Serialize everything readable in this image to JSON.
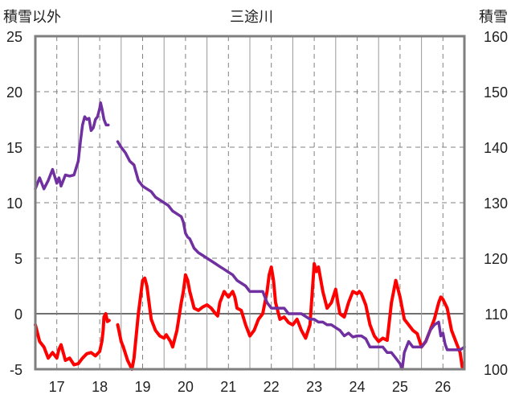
{
  "chart_data": {
    "type": "line",
    "title": "三途川",
    "y_left_label": "積雪以外",
    "y_right_label": "積雪",
    "x_categories": [
      "17",
      "18",
      "19",
      "20",
      "21",
      "22",
      "23",
      "24",
      "25",
      "26"
    ],
    "xlim": [
      16.5,
      26.5
    ],
    "y_left_lim": [
      -5,
      25
    ],
    "y_left_ticks": [
      "25",
      "20",
      "15",
      "10",
      "5",
      "0",
      "-5"
    ],
    "y_right_lim": [
      100,
      160
    ],
    "y_right_ticks": [
      "160",
      "150",
      "140",
      "130",
      "120",
      "110",
      "100"
    ],
    "grid": "dashed vertical and horizontal gridlines",
    "colors": {
      "red_series": "#ff0000",
      "purple_series": "#7030a0",
      "frame": "#7f7f7f",
      "grid": "#808080"
    },
    "series": [
      {
        "axis": "left",
        "color": "#ff0000",
        "segments": [
          [
            [
              16.5,
              -1.0
            ],
            [
              16.6,
              -2.5
            ],
            [
              16.7,
              -3.0
            ],
            [
              16.8,
              -4.0
            ],
            [
              16.9,
              -3.5
            ],
            [
              17.0,
              -4.0
            ],
            [
              17.05,
              -3.2
            ],
            [
              17.1,
              -2.8
            ],
            [
              17.2,
              -4.2
            ],
            [
              17.3,
              -4.0
            ],
            [
              17.4,
              -4.6
            ],
            [
              17.5,
              -4.5
            ],
            [
              17.6,
              -4.0
            ],
            [
              17.7,
              -3.6
            ],
            [
              17.8,
              -3.5
            ],
            [
              17.9,
              -3.8
            ],
            [
              18.0,
              -3.4
            ],
            [
              18.05,
              -2.5
            ],
            [
              18.08,
              -1.5
            ],
            [
              18.1,
              -0.3
            ],
            [
              18.14,
              0.0
            ],
            [
              18.18,
              -0.7
            ],
            [
              18.22,
              -0.6
            ]
          ],
          [
            [
              18.42,
              -1.0
            ],
            [
              18.5,
              -2.5
            ],
            [
              18.55,
              -3.0
            ],
            [
              18.65,
              -4.2
            ],
            [
              18.75,
              -5.0
            ],
            [
              18.8,
              -4.0
            ],
            [
              18.9,
              0.0
            ],
            [
              19.0,
              3.0
            ],
            [
              19.05,
              3.2
            ],
            [
              19.1,
              2.5
            ],
            [
              19.2,
              -0.5
            ],
            [
              19.3,
              -1.5
            ],
            [
              19.4,
              -2.0
            ],
            [
              19.5,
              -2.2
            ],
            [
              19.55,
              -1.9
            ],
            [
              19.65,
              -2.5
            ],
            [
              19.7,
              -3.0
            ],
            [
              19.8,
              -1.5
            ],
            [
              19.9,
              1.0
            ],
            [
              19.95,
              2.0
            ],
            [
              20.0,
              3.5
            ],
            [
              20.05,
              3.0
            ],
            [
              20.1,
              2.0
            ],
            [
              20.2,
              0.5
            ],
            [
              20.3,
              0.3
            ],
            [
              20.4,
              0.6
            ],
            [
              20.5,
              0.8
            ],
            [
              20.6,
              0.5
            ],
            [
              20.7,
              0.0
            ],
            [
              20.75,
              -0.2
            ],
            [
              20.8,
              1.0
            ],
            [
              20.9,
              2.0
            ],
            [
              21.0,
              1.5
            ],
            [
              21.1,
              2.0
            ],
            [
              21.15,
              1.5
            ],
            [
              21.2,
              0.5
            ],
            [
              21.3,
              0.3
            ],
            [
              21.4,
              -1.0
            ],
            [
              21.5,
              -2.0
            ],
            [
              21.6,
              -1.5
            ],
            [
              21.7,
              -0.5
            ],
            [
              21.8,
              0.0
            ],
            [
              21.9,
              2.0
            ],
            [
              21.95,
              3.5
            ],
            [
              22.0,
              4.2
            ],
            [
              22.05,
              3.0
            ],
            [
              22.1,
              1.0
            ],
            [
              22.2,
              -0.5
            ],
            [
              22.3,
              -0.3
            ],
            [
              22.4,
              -0.8
            ],
            [
              22.5,
              -1.0
            ],
            [
              22.6,
              -0.5
            ],
            [
              22.7,
              -1.5
            ],
            [
              22.8,
              -2.2
            ],
            [
              22.9,
              -1.0
            ],
            [
              23.0,
              4.5
            ],
            [
              23.05,
              3.8
            ],
            [
              23.1,
              4.2
            ],
            [
              23.2,
              2.0
            ],
            [
              23.3,
              0.5
            ],
            [
              23.4,
              1.0
            ],
            [
              23.5,
              2.2
            ],
            [
              23.55,
              1.0
            ],
            [
              23.6,
              0.0
            ],
            [
              23.7,
              -0.3
            ],
            [
              23.8,
              1.0
            ],
            [
              23.9,
              2.0
            ],
            [
              24.0,
              1.8
            ],
            [
              24.05,
              2.0
            ],
            [
              24.1,
              1.8
            ],
            [
              24.2,
              0.8
            ],
            [
              24.3,
              -1.0
            ],
            [
              24.4,
              -2.0
            ],
            [
              24.5,
              -2.5
            ],
            [
              24.6,
              -2.2
            ],
            [
              24.7,
              -2.4
            ],
            [
              24.8,
              1.0
            ],
            [
              24.9,
              3.0
            ],
            [
              25.0,
              1.5
            ],
            [
              25.1,
              -0.5
            ],
            [
              25.2,
              -1.0
            ],
            [
              25.3,
              -1.5
            ],
            [
              25.4,
              -1.8
            ],
            [
              25.5,
              -3.0
            ],
            [
              25.6,
              -2.5
            ],
            [
              25.7,
              -1.5
            ],
            [
              25.8,
              -0.5
            ],
            [
              25.9,
              1.0
            ],
            [
              25.95,
              1.5
            ],
            [
              26.0,
              1.3
            ],
            [
              26.1,
              0.5
            ],
            [
              26.2,
              -1.5
            ],
            [
              26.3,
              -2.5
            ],
            [
              26.4,
              -3.5
            ],
            [
              26.45,
              -4.8
            ]
          ]
        ]
      },
      {
        "axis": "right",
        "color": "#7030a0",
        "segments": [
          [
            [
              16.5,
              132.5
            ],
            [
              16.6,
              134.5
            ],
            [
              16.7,
              132.5
            ],
            [
              16.8,
              134.0
            ],
            [
              16.9,
              136.0
            ],
            [
              17.0,
              133.5
            ],
            [
              17.05,
              134.5
            ],
            [
              17.1,
              133.0
            ],
            [
              17.2,
              135.0
            ],
            [
              17.3,
              134.8
            ],
            [
              17.4,
              135.0
            ],
            [
              17.5,
              137.5
            ],
            [
              17.55,
              141.0
            ],
            [
              17.6,
              144.0
            ],
            [
              17.65,
              145.5
            ],
            [
              17.7,
              145.0
            ],
            [
              17.75,
              145.2
            ],
            [
              17.8,
              143.0
            ],
            [
              17.85,
              143.5
            ],
            [
              17.9,
              145.0
            ],
            [
              17.95,
              145.5
            ],
            [
              18.0,
              147.0
            ],
            [
              18.02,
              148.0
            ],
            [
              18.05,
              147.0
            ],
            [
              18.1,
              145.0
            ],
            [
              18.15,
              144.0
            ],
            [
              18.2,
              144.0
            ]
          ],
          [
            [
              18.42,
              141.0
            ],
            [
              18.5,
              140.0
            ],
            [
              18.6,
              139.0
            ],
            [
              18.7,
              137.5
            ],
            [
              18.8,
              136.8
            ],
            [
              18.9,
              134.0
            ],
            [
              19.0,
              133.0
            ],
            [
              19.1,
              132.5
            ],
            [
              19.2,
              132.0
            ],
            [
              19.3,
              131.0
            ],
            [
              19.4,
              130.5
            ],
            [
              19.5,
              130.0
            ],
            [
              19.6,
              129.5
            ],
            [
              19.7,
              128.5
            ],
            [
              19.8,
              128.0
            ],
            [
              19.9,
              127.5
            ],
            [
              19.95,
              126.5
            ],
            [
              20.0,
              124.5
            ],
            [
              20.05,
              123.8
            ],
            [
              20.1,
              123.5
            ],
            [
              20.2,
              121.8
            ],
            [
              20.3,
              121.0
            ],
            [
              20.4,
              120.5
            ],
            [
              20.5,
              120.0
            ],
            [
              20.6,
              119.5
            ],
            [
              20.7,
              119.0
            ],
            [
              20.8,
              118.5
            ],
            [
              20.9,
              118.0
            ],
            [
              21.0,
              117.5
            ],
            [
              21.1,
              117.0
            ],
            [
              21.2,
              116.0
            ],
            [
              21.3,
              115.5
            ],
            [
              21.4,
              115.0
            ],
            [
              21.5,
              114.0
            ],
            [
              21.6,
              114.0
            ],
            [
              21.7,
              114.0
            ],
            [
              21.8,
              114.0
            ],
            [
              21.9,
              112.0
            ],
            [
              22.0,
              111.0
            ],
            [
              22.1,
              111.0
            ],
            [
              22.2,
              111.0
            ],
            [
              22.3,
              111.0
            ],
            [
              22.4,
              110.0
            ],
            [
              22.5,
              110.0
            ],
            [
              22.6,
              110.0
            ],
            [
              22.7,
              110.0
            ],
            [
              22.8,
              109.5
            ],
            [
              22.9,
              109.0
            ],
            [
              23.0,
              109.0
            ],
            [
              23.1,
              108.5
            ],
            [
              23.2,
              108.5
            ],
            [
              23.3,
              108.0
            ],
            [
              23.4,
              108.0
            ],
            [
              23.5,
              107.5
            ],
            [
              23.6,
              107.0
            ],
            [
              23.7,
              106.0
            ],
            [
              23.8,
              106.5
            ],
            [
              23.9,
              105.8
            ],
            [
              24.0,
              106.0
            ],
            [
              24.1,
              106.0
            ],
            [
              24.2,
              105.5
            ],
            [
              24.3,
              104.0
            ],
            [
              24.4,
              104.0
            ],
            [
              24.5,
              104.0
            ],
            [
              24.6,
              104.0
            ],
            [
              24.7,
              103.0
            ],
            [
              24.8,
              103.0
            ],
            [
              24.9,
              102.0
            ],
            [
              25.0,
              101.0
            ],
            [
              25.05,
              100.0
            ],
            [
              25.1,
              103.0
            ],
            [
              25.2,
              105.0
            ],
            [
              25.3,
              104.0
            ],
            [
              25.4,
              104.0
            ],
            [
              25.5,
              104.0
            ],
            [
              25.6,
              105.0
            ],
            [
              25.7,
              107.0
            ],
            [
              25.8,
              108.0
            ],
            [
              25.9,
              108.5
            ],
            [
              25.95,
              106.0
            ],
            [
              26.0,
              106.5
            ],
            [
              26.05,
              104.5
            ],
            [
              26.1,
              103.5
            ],
            [
              26.2,
              103.5
            ],
            [
              26.3,
              103.5
            ],
            [
              26.4,
              103.5
            ],
            [
              26.5,
              104.0
            ]
          ]
        ]
      }
    ]
  }
}
